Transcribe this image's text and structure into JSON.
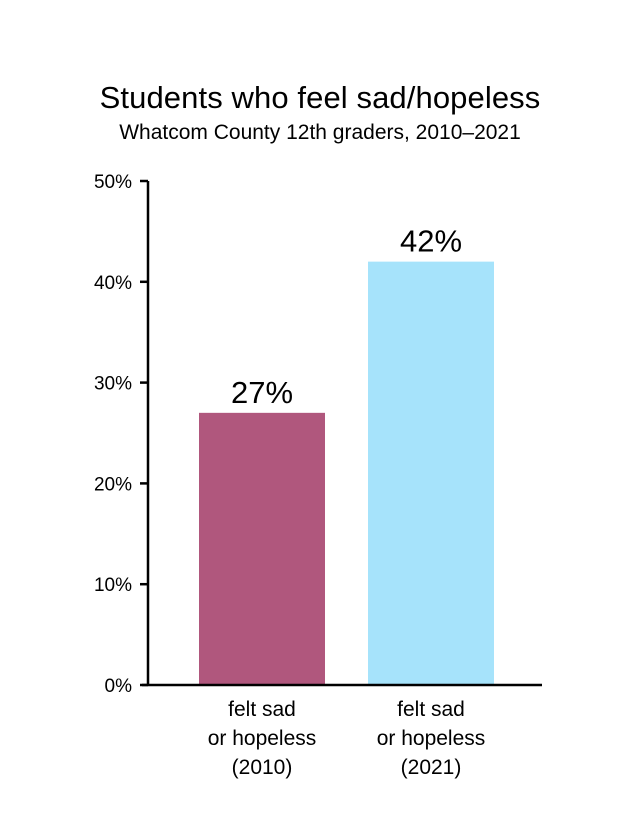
{
  "chart_data": {
    "type": "bar",
    "title": "Students who feel sad/hopeless",
    "subtitle": "Whatcom County 12th graders, 2010–2021",
    "categories": [
      [
        "felt sad",
        "or hopeless",
        "(2010)"
      ],
      [
        "felt sad",
        "or hopeless",
        "(2021)"
      ]
    ],
    "values": [
      27,
      42
    ],
    "data_labels": [
      "27%",
      "42%"
    ],
    "colors": [
      "#b0577d",
      "#a6e3fb"
    ],
    "ylim": [
      0,
      50
    ],
    "yticks": [
      0,
      10,
      20,
      30,
      40,
      50
    ],
    "ytick_labels": [
      "0%",
      "10%",
      "20%",
      "30%",
      "40%",
      "50%"
    ],
    "xlabel": "",
    "ylabel": "",
    "grid": false
  }
}
